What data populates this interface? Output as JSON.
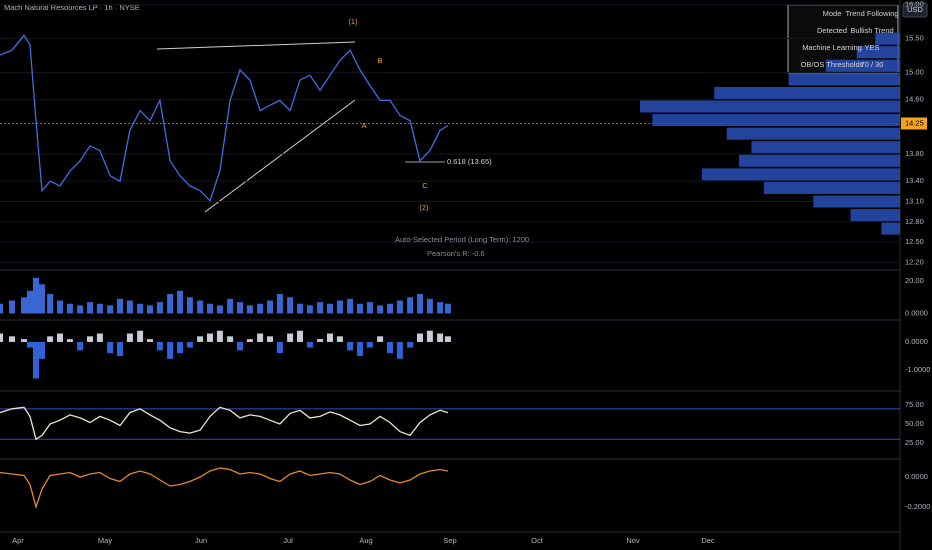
{
  "chart_data": {
    "type": "stock",
    "title": "Mach Natural Resources LP · 1h · NYSE",
    "currency": "USD",
    "xlim": [
      -6,
      294
    ],
    "xticks": [
      {
        "value": 0,
        "label": "Apr"
      },
      {
        "value": 29,
        "label": "May"
      },
      {
        "value": 61,
        "label": "Jun"
      },
      {
        "value": 90,
        "label": "Jul"
      },
      {
        "value": 116,
        "label": "Aug"
      },
      {
        "value": 144,
        "label": "Sep"
      },
      {
        "value": 173,
        "label": "Oct"
      },
      {
        "value": 205,
        "label": "Nov"
      },
      {
        "value": 230,
        "label": "Dec"
      }
    ],
    "x": [
      -6,
      -2,
      2,
      4,
      6,
      8,
      10.7,
      14,
      17.3,
      20.7,
      24,
      27.3,
      30.7,
      34,
      37.3,
      40.7,
      44,
      47.3,
      50.7,
      54,
      57.3,
      60.7,
      64,
      67.3,
      70.7,
      74,
      77.3,
      80.7,
      84,
      87.3,
      90.7,
      94,
      97.3,
      100.7,
      104,
      107.3,
      110.7,
      114,
      117.3,
      120.7,
      124,
      127.3,
      130.7,
      134,
      137.3,
      140.7,
      143.3
    ],
    "panes": [
      {
        "type": "line",
        "color": "#3d6fe0",
        "grid": true,
        "ylim": [
          12.12,
          16.07
        ],
        "yticks": [
          {
            "value": 16,
            "label": "16.00"
          },
          {
            "value": 15.5,
            "label": "15.50"
          },
          {
            "value": 15,
            "label": "15.00"
          },
          {
            "value": 14.6,
            "label": "14.60"
          },
          {
            "value": 13.8,
            "label": "13.80"
          },
          {
            "value": 13.4,
            "label": "13.40"
          },
          {
            "value": 13.1,
            "label": "13.10"
          },
          {
            "value": 12.8,
            "label": "12.80"
          },
          {
            "value": 12.5,
            "label": "12.50"
          },
          {
            "value": 12.2,
            "label": "12.20"
          }
        ],
        "values": [
          15.26,
          15.33,
          15.55,
          15.41,
          14.29,
          13.26,
          13.4,
          13.33,
          13.55,
          13.7,
          13.92,
          13.85,
          13.48,
          13.4,
          14.15,
          14.44,
          14.29,
          14.59,
          13.7,
          13.48,
          13.33,
          13.26,
          13.11,
          13.55,
          14.59,
          15.04,
          14.89,
          14.44,
          14.52,
          14.59,
          14.44,
          14.89,
          14.96,
          14.74,
          14.96,
          15.18,
          15.33,
          15.04,
          14.81,
          14.59,
          14.59,
          14.37,
          14.29,
          13.7,
          13.85,
          14.15,
          14.22
        ],
        "last_price": {
          "value": 14.25,
          "label": "14.25"
        }
      },
      {
        "type": "bar",
        "color": "#3a66d4",
        "negative_color": "#3a66d4",
        "ylim": [
          -2.8,
          25.6
        ],
        "yticks": [
          {
            "value": 20,
            "label": "20.00"
          },
          {
            "value": 0,
            "label": "0.0000"
          }
        ],
        "values": [
          6,
          8,
          10,
          14,
          22,
          18,
          12,
          8,
          6,
          5,
          7,
          6,
          5,
          9,
          8,
          6,
          5,
          7,
          12,
          14,
          10,
          8,
          6,
          5,
          9,
          7,
          5,
          6,
          8,
          12,
          10,
          6,
          5,
          7,
          6,
          8,
          9,
          6,
          7,
          5,
          6,
          8,
          10,
          12,
          9,
          7,
          6
        ]
      },
      {
        "type": "bar",
        "color": "#c8ccd6",
        "negative_color": "#2f62d8",
        "ylim": [
          -1.71,
          0.71
        ],
        "yticks": [
          {
            "value": 0,
            "label": "0.0000"
          },
          {
            "value": -1,
            "label": "-1.0000"
          }
        ],
        "values": [
          0.3,
          0.2,
          0.1,
          -0.2,
          -1.3,
          -0.6,
          0.2,
          0.3,
          0.1,
          -0.3,
          0.2,
          0.3,
          -0.4,
          -0.5,
          0.3,
          0.4,
          0.1,
          -0.3,
          -0.6,
          -0.4,
          -0.2,
          0.2,
          0.3,
          0.4,
          0.2,
          -0.3,
          0.1,
          0.3,
          0.2,
          -0.4,
          0.3,
          0.4,
          -0.2,
          0.1,
          0.3,
          0.2,
          -0.3,
          -0.5,
          -0.2,
          0.2,
          -0.4,
          -0.6,
          -0.2,
          0.3,
          0.4,
          0.3,
          0.2
        ]
      },
      {
        "type": "line",
        "color": "#f0e6c8",
        "levels": [
          70,
          30
        ],
        "level_color": "#2f4fc4",
        "ylim": [
          5.3,
          90.8
        ],
        "yticks": [
          {
            "value": 75,
            "label": "75.00"
          },
          {
            "value": 50,
            "label": "50.00"
          },
          {
            "value": 25,
            "label": "25.00"
          }
        ],
        "values": [
          65,
          70,
          72,
          60,
          30,
          35,
          50,
          55,
          62,
          58,
          52,
          60,
          55,
          48,
          65,
          70,
          62,
          55,
          45,
          40,
          38,
          42,
          60,
          72,
          68,
          58,
          62,
          60,
          55,
          50,
          64,
          68,
          58,
          60,
          66,
          62,
          55,
          48,
          50,
          60,
          52,
          40,
          35,
          52,
          62,
          68,
          65
        ]
      },
      {
        "type": "line",
        "color": "#e08a2a",
        "ylim": [
          -0.353,
          0.113
        ],
        "yticks": [
          {
            "value": 0,
            "label": "0.0000"
          },
          {
            "value": -0.2,
            "label": "-0.2000"
          }
        ],
        "values": [
          0.03,
          0.02,
          0.01,
          -0.05,
          -0.2,
          -0.08,
          0.01,
          0.02,
          0.03,
          0.0,
          0.02,
          0.03,
          -0.01,
          -0.03,
          0.02,
          0.04,
          0.02,
          -0.02,
          -0.06,
          -0.05,
          -0.03,
          0.0,
          0.04,
          0.06,
          0.05,
          0.02,
          0.03,
          0.02,
          -0.01,
          -0.03,
          0.02,
          0.04,
          0.01,
          0.02,
          0.03,
          0.02,
          -0.02,
          -0.05,
          -0.03,
          0.01,
          -0.02,
          -0.04,
          -0.02,
          0.02,
          0.04,
          0.05,
          0.04
        ]
      }
    ],
    "volume_profile": {
      "color": "#2a4fb8",
      "prices": [
        15.5,
        15.3,
        15.1,
        14.9,
        14.7,
        14.5,
        14.3,
        14.1,
        13.9,
        13.7,
        13.5,
        13.3,
        13.1,
        12.9,
        12.7
      ],
      "values": [
        20,
        35,
        60,
        90,
        150,
        210,
        200,
        140,
        120,
        130,
        160,
        110,
        70,
        40,
        15
      ]
    },
    "annotations": [
      "(1)",
      "B",
      "A",
      "C",
      "(2)",
      "0.618 (13.65)",
      "Auto-Selected Period (Long Term): 1200",
      "Pearson's R: -0.6"
    ],
    "table": {
      "rows": [
        [
          "Mode",
          "Trend Following"
        ],
        [
          "Detected",
          "Bullish Trend"
        ],
        [
          "Machine Learning",
          "YES"
        ],
        [
          "OB/OS Thresholds",
          "70 / 30"
        ]
      ]
    }
  }
}
